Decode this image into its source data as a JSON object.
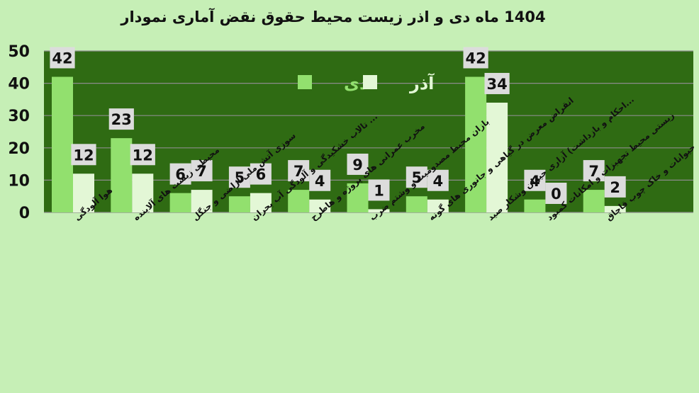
{
  "chart_data": {
    "type": "bar",
    "title": "1404 ماه دی و اذر زیست محیط حقوق نقض آماری نمودار",
    "categories": [
      "هوا آلودگی",
      "محیطی زیست های آلاینده",
      "سوزی آتش ملی اراضی و جنگل",
      "... تالاب خشکیدگی و آلودگی آب بحران",
      "مخرب عمرانی های پروژه و هاطرح",
      "بازان محیط مصدومیت و وشتم ضرب",
      "انقراض معرض در گیاهی و جانوری های گونه",
      "...احکام و بازداشت) آزاری حیوان وشکار صید",
      "زیستی محیط تجهیزات و امکانات کمبود",
      "حیوانات و خاک چوب قاچاق"
    ],
    "series": [
      {
        "name": "دی",
        "color": "#92e06e",
        "values": [
          42,
          23,
          6,
          5,
          7,
          9,
          5,
          42,
          4,
          7
        ]
      },
      {
        "name": "آذر",
        "color": "#e3f7d6",
        "values": [
          12,
          12,
          7,
          6,
          4,
          1,
          4,
          34,
          0,
          2
        ]
      }
    ],
    "yticks": [
      0,
      10,
      20,
      30,
      40,
      50
    ],
    "ylim": [
      0,
      50
    ],
    "grid": true,
    "legend": "top-center",
    "plot_background": "#2f6b13",
    "gridline_color": "#8c8c8c",
    "label_box_color": "#dcdcdc"
  }
}
